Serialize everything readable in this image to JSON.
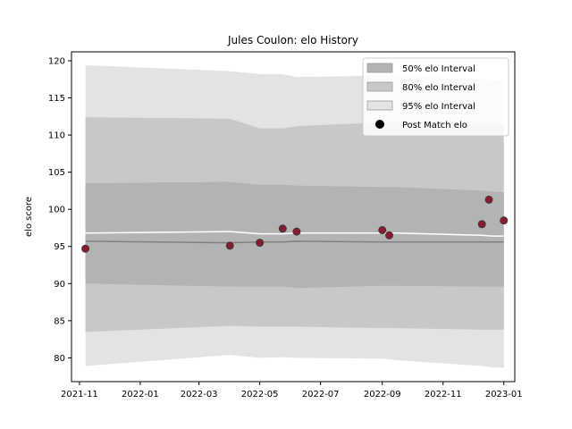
{
  "chart_data": {
    "type": "scatter",
    "title": "Jules Coulon: elo History",
    "xlabel": "",
    "ylabel": "elo score",
    "xlim": [
      "2021-10-24",
      "2023-01-12"
    ],
    "ylim": [
      76.8,
      121.2
    ],
    "xticks": [
      "2021-11",
      "2022-01",
      "2022-03",
      "2022-05",
      "2022-07",
      "2022-09",
      "2022-11",
      "2023-01"
    ],
    "yticks": [
      80,
      85,
      90,
      95,
      100,
      105,
      110,
      115,
      120
    ],
    "legend_position": "top-right",
    "legend": [
      {
        "label": "50% elo Interval",
        "kind": "patch",
        "color": "#b3b3b3"
      },
      {
        "label": "80% elo Interval",
        "kind": "patch",
        "color": "#c8c8c8"
      },
      {
        "label": "95% elo Interval",
        "kind": "patch",
        "color": "#e3e3e3"
      },
      {
        "label": "Post Match elo",
        "kind": "marker",
        "color": "#000000"
      }
    ],
    "band_x": [
      "2021-11-07",
      "2022-04-01",
      "2022-05-01",
      "2022-05-24",
      "2022-06-07",
      "2022-09-01",
      "2022-09-15",
      "2022-12-10",
      "2022-12-20",
      "2023-01-01"
    ],
    "bands": [
      {
        "name": "95% elo Interval",
        "color": "#e3e3e3",
        "upper": [
          119.4,
          118.6,
          118.2,
          118.2,
          117.8,
          118.0,
          118.0,
          117.5,
          117.4,
          117.3
        ],
        "lower": [
          78.9,
          80.4,
          80.0,
          80.1,
          80.0,
          79.9,
          79.7,
          78.9,
          78.7,
          78.7
        ]
      },
      {
        "name": "80% elo Interval",
        "color": "#c8c8c8",
        "upper": [
          112.4,
          112.2,
          110.9,
          110.9,
          111.2,
          111.7,
          111.7,
          111.5,
          111.4,
          111.3
        ],
        "lower": [
          83.5,
          84.3,
          84.2,
          84.2,
          84.2,
          84.0,
          84.0,
          83.8,
          83.8,
          83.8
        ]
      },
      {
        "name": "50% elo Interval",
        "color": "#b3b3b3",
        "upper": [
          103.5,
          103.7,
          103.3,
          103.3,
          103.2,
          103.0,
          103.0,
          102.5,
          102.4,
          102.3
        ],
        "lower": [
          90.0,
          89.6,
          89.6,
          89.6,
          89.4,
          89.7,
          89.7,
          89.6,
          89.6,
          89.6
        ]
      }
    ],
    "mean_line": {
      "color": "#808080",
      "values": [
        95.7,
        95.5,
        95.6,
        95.6,
        95.7,
        95.6,
        95.6,
        95.6,
        95.6,
        95.6
      ]
    },
    "median_line": {
      "color": "#ffffff",
      "values": [
        96.8,
        97.0,
        96.7,
        96.7,
        96.8,
        96.8,
        96.8,
        96.5,
        96.4,
        96.4
      ]
    },
    "points": {
      "name": "Post Match elo",
      "color": "#8b1a2f",
      "x": [
        "2021-11-07",
        "2022-04-01",
        "2022-05-01",
        "2022-05-24",
        "2022-06-07",
        "2022-09-01",
        "2022-09-08",
        "2022-12-10",
        "2022-12-17",
        "2023-01-01"
      ],
      "y": [
        94.7,
        95.1,
        95.5,
        97.4,
        97.0,
        97.2,
        96.5,
        98.0,
        101.3,
        98.5
      ]
    }
  }
}
